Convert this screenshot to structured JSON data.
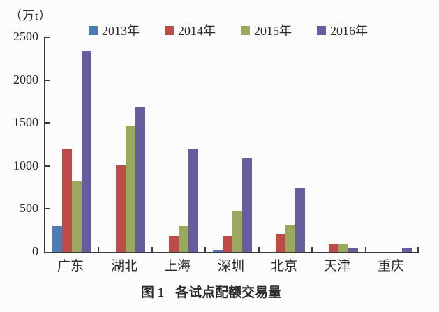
{
  "figure": {
    "y_axis_unit": "（万t）",
    "caption_label": "图 1",
    "caption_title": "各试点配额交易量"
  },
  "colors": {
    "axis": "#3b3b3b",
    "background": "#fcfcfc",
    "text": "#2b2b2b"
  },
  "chart_data": {
    "type": "bar",
    "title": "图1 各试点配额交易量",
    "xlabel": "",
    "ylabel": "（万t）",
    "ylim": [
      0,
      2500
    ],
    "yticks": [
      0,
      500,
      1000,
      1500,
      2000,
      2500
    ],
    "grid": false,
    "legend_position": "top",
    "categories": [
      "广东",
      "湖北",
      "上海",
      "深圳",
      "北京",
      "天津",
      "重庆"
    ],
    "series": [
      {
        "name": "2013年",
        "color": "#4d7cb4",
        "values": [
          300,
          0,
          0,
          25,
          0,
          0,
          0
        ]
      },
      {
        "name": "2014年",
        "color": "#bc4c4a",
        "values": [
          1200,
          1010,
          190,
          185,
          215,
          95,
          0
        ]
      },
      {
        "name": "2015年",
        "color": "#99aa5e",
        "values": [
          820,
          1470,
          300,
          475,
          310,
          95,
          0
        ]
      },
      {
        "name": "2016年",
        "color": "#655d9d",
        "values": [
          2340,
          1680,
          1190,
          1090,
          735,
          40,
          45
        ]
      }
    ]
  }
}
